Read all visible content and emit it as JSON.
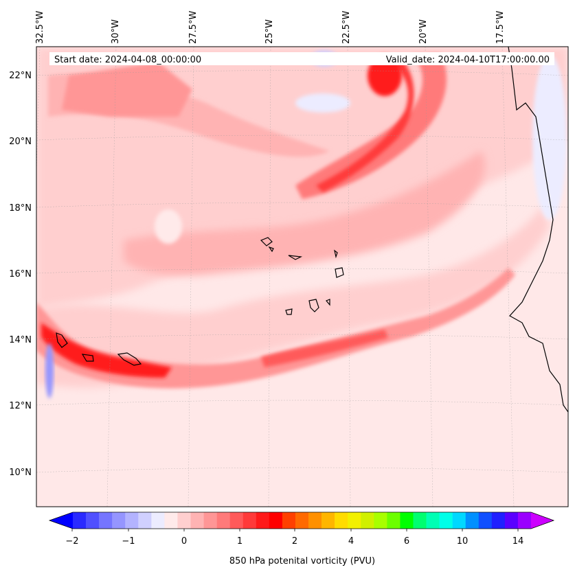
{
  "header": {
    "start_date": "Start date: 2024-04-08_00:00:00",
    "valid_date": "Valid_date: 2024-04-10T17:00:00.00"
  },
  "map": {
    "lon_labels": [
      "32.5°W",
      "30°W",
      "27.5°W",
      "25°W",
      "22.5°W",
      "20°W",
      "17.5°W"
    ],
    "lat_labels": [
      "22°N",
      "20°N",
      "18°N",
      "16°N",
      "14°N",
      "12°N",
      "10°N"
    ],
    "background_color": "#ffe8e8",
    "coastline_color": "#000000"
  },
  "colorbar": {
    "label": "850 hPa potenital vorticity (PVU)",
    "tick_labels": [
      "−2",
      "−1",
      "0",
      "1",
      "2",
      "4",
      "6",
      "10",
      "14"
    ],
    "colors": [
      "#0000ff",
      "#2a2aff",
      "#5050ff",
      "#7575ff",
      "#9595ff",
      "#b3b3ff",
      "#d0d0ff",
      "#ececff",
      "#ffeaea",
      "#ffcfcf",
      "#ffb3b3",
      "#ff9696",
      "#ff7a7a",
      "#ff5a5a",
      "#ff3a3a",
      "#ff1a1a",
      "#ff0000",
      "#ff4000",
      "#ff6a00",
      "#ff9000",
      "#ffb600",
      "#ffdc00",
      "#f2f000",
      "#d0f000",
      "#a8ff00",
      "#6cff00",
      "#00ff00",
      "#00ff70",
      "#00ffb4",
      "#00ffe8",
      "#00d8ff",
      "#0090ff",
      "#1050ff",
      "#2020ff",
      "#5a00ff",
      "#9a00ff",
      "#cc00ff"
    ]
  }
}
